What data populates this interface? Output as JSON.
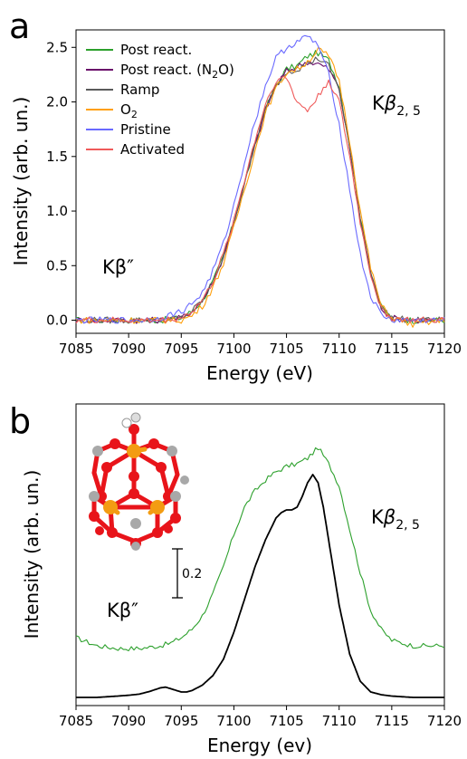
{
  "chart_data": [
    {
      "panel": "a",
      "type": "line",
      "xlabel": "Energy (eV)",
      "ylabel": "Intensity (arb. un.)",
      "xlim": [
        7085,
        7120
      ],
      "ylim": [
        -0.12,
        2.66
      ],
      "xticks": [
        7085,
        7090,
        7095,
        7100,
        7105,
        7110,
        7115,
        7120
      ],
      "xtick_labels": [
        "7085",
        "7090",
        "7095",
        "7100",
        "7105",
        "7110",
        "7115",
        "7120"
      ],
      "yticks": [
        0.0,
        0.5,
        1.0,
        1.5,
        2.0,
        2.5
      ],
      "ytick_labels": [
        "0.0",
        "0.5",
        "1.0",
        "1.5",
        "2.0",
        "2.5"
      ],
      "grid": false,
      "legend_position": "top-left",
      "annotations": [
        {
          "text": "Kβ″",
          "x": 7088.5,
          "y": 0.42
        },
        {
          "text": "Kβ2, 5",
          "x": 7113.5,
          "y": 2.0
        }
      ],
      "series": [
        {
          "name": "Post react.",
          "legend_sub": "",
          "legend_tail": "",
          "color": "#2ca02c",
          "x": [
            7085,
            7087,
            7089,
            7091,
            7093,
            7095,
            7096,
            7097,
            7098,
            7099,
            7100,
            7101,
            7102,
            7103,
            7104,
            7105,
            7106,
            7107,
            7108,
            7109,
            7110,
            7111,
            7112,
            7113,
            7114,
            7115,
            7117,
            7120
          ],
          "y": [
            0.0,
            0.0,
            0.0,
            0.0,
            0.0,
            0.02,
            0.08,
            0.18,
            0.35,
            0.58,
            0.9,
            1.25,
            1.6,
            1.93,
            2.15,
            2.3,
            2.33,
            2.42,
            2.45,
            2.38,
            2.15,
            1.6,
            0.95,
            0.45,
            0.12,
            0.02,
            0.0,
            0.0
          ]
        },
        {
          "name": "Post react. (N",
          "legend_sub": "2",
          "legend_tail": "O)",
          "color": "#6a0d6a",
          "x": [
            7085,
            7087,
            7089,
            7091,
            7093,
            7095,
            7096,
            7097,
            7098,
            7099,
            7100,
            7101,
            7102,
            7103,
            7104,
            7105,
            7106,
            7107,
            7108,
            7109,
            7110,
            7111,
            7112,
            7113,
            7114,
            7115,
            7117,
            7120
          ],
          "y": [
            0.0,
            0.0,
            0.0,
            0.0,
            0.0,
            0.02,
            0.08,
            0.18,
            0.35,
            0.58,
            0.9,
            1.25,
            1.6,
            1.92,
            2.15,
            2.28,
            2.32,
            2.37,
            2.35,
            2.3,
            2.12,
            1.58,
            0.93,
            0.44,
            0.12,
            0.02,
            0.0,
            0.0
          ]
        },
        {
          "name": "Ramp",
          "legend_sub": "",
          "legend_tail": "",
          "color": "#5a5a5a",
          "x": [
            7085,
            7087,
            7089,
            7091,
            7093,
            7095,
            7096,
            7097,
            7098,
            7099,
            7100,
            7101,
            7102,
            7103,
            7104,
            7105,
            7106,
            7107,
            7108,
            7109,
            7110,
            7111,
            7112,
            7113,
            7114,
            7115,
            7117,
            7120
          ],
          "y": [
            0.0,
            0.0,
            0.0,
            0.0,
            0.0,
            0.02,
            0.08,
            0.18,
            0.35,
            0.58,
            0.9,
            1.25,
            1.6,
            1.93,
            2.15,
            2.28,
            2.3,
            2.35,
            2.4,
            2.33,
            2.12,
            1.58,
            0.93,
            0.44,
            0.12,
            0.02,
            0.0,
            0.0
          ]
        },
        {
          "name": "O",
          "legend_sub": "2",
          "legend_tail": "",
          "color": "#ff9f0a",
          "x": [
            7085,
            7087,
            7089,
            7091,
            7093,
            7095,
            7096,
            7097,
            7098,
            7099,
            7100,
            7101,
            7102,
            7103,
            7104,
            7105,
            7106,
            7107,
            7108,
            7109,
            7110,
            7111,
            7112,
            7113,
            7114,
            7115,
            7117,
            7120
          ],
          "y": [
            0.0,
            0.0,
            0.0,
            0.0,
            0.0,
            0.0,
            0.04,
            0.13,
            0.3,
            0.52,
            0.85,
            1.2,
            1.55,
            1.9,
            2.12,
            2.27,
            2.3,
            2.37,
            2.48,
            2.42,
            2.2,
            1.65,
            1.0,
            0.48,
            0.13,
            0.02,
            -0.04,
            0.0
          ]
        },
        {
          "name": "Pristine",
          "legend_sub": "",
          "legend_tail": "",
          "color": "#6a6aff",
          "x": [
            7085,
            7087,
            7089,
            7091,
            7093,
            7095,
            7096,
            7097,
            7098,
            7099,
            7100,
            7101,
            7102,
            7103,
            7104,
            7105,
            7106,
            7107,
            7108,
            7109,
            7110,
            7111,
            7112,
            7113,
            7114,
            7115,
            7117,
            7120
          ],
          "y": [
            0.0,
            0.0,
            0.0,
            0.0,
            0.02,
            0.08,
            0.15,
            0.25,
            0.45,
            0.7,
            1.05,
            1.45,
            1.82,
            2.15,
            2.4,
            2.5,
            2.55,
            2.6,
            2.52,
            2.25,
            1.8,
            1.2,
            0.6,
            0.22,
            0.05,
            0.0,
            0.0,
            0.0
          ]
        },
        {
          "name": "Activated",
          "legend_sub": "",
          "legend_tail": "",
          "color": "#ef5a5a",
          "x": [
            7085,
            7087,
            7089,
            7091,
            7093,
            7095,
            7096,
            7097,
            7098,
            7099,
            7100,
            7101,
            7102,
            7103,
            7104,
            7105,
            7106,
            7107,
            7108,
            7109,
            7110,
            7111,
            7112,
            7113,
            7114,
            7115,
            7117,
            7120
          ],
          "y": [
            0.0,
            0.0,
            0.0,
            0.0,
            0.0,
            0.02,
            0.08,
            0.18,
            0.35,
            0.6,
            0.92,
            1.28,
            1.65,
            1.98,
            2.2,
            2.22,
            2.0,
            1.92,
            2.05,
            2.2,
            2.0,
            1.5,
            0.9,
            0.42,
            0.1,
            0.02,
            0.0,
            0.0
          ]
        }
      ]
    },
    {
      "panel": "b",
      "type": "line",
      "xlabel": "Energy (ev)",
      "ylabel": "Intensity (arb. un.)",
      "xlim": [
        7085,
        7120
      ],
      "ylim": [
        -0.03,
        1.08
      ],
      "xticks": [
        7085,
        7090,
        7095,
        7100,
        7105,
        7110,
        7115,
        7120
      ],
      "xtick_labels": [
        "7085",
        "7090",
        "7095",
        "7100",
        "7105",
        "7110",
        "7115",
        "7120"
      ],
      "yticks": [],
      "grid": false,
      "annotations": [
        {
          "text": "Kβ″",
          "x": 7087.5,
          "y": 0.27
        },
        {
          "text": "Kβ2, 5",
          "x": 7113,
          "y": 0.66
        }
      ],
      "scale_bar": {
        "label": "0.2",
        "x": 7094,
        "y_from": 0.335,
        "y_to": 0.535
      },
      "series": [
        {
          "name": "",
          "color": "#2ca02c",
          "x": [
            7085,
            7087,
            7089,
            7091,
            7093,
            7094,
            7095,
            7096,
            7097,
            7098,
            7099,
            7100,
            7101,
            7102,
            7103,
            7104,
            7105,
            7106,
            7107,
            7108,
            7109,
            7110,
            7111,
            7112,
            7113,
            7114,
            7115,
            7117,
            7120
          ],
          "y": [
            0.22,
            0.19,
            0.18,
            0.18,
            0.19,
            0.2,
            0.22,
            0.25,
            0.3,
            0.38,
            0.48,
            0.6,
            0.7,
            0.76,
            0.8,
            0.83,
            0.85,
            0.86,
            0.88,
            0.92,
            0.86,
            0.78,
            0.62,
            0.46,
            0.32,
            0.25,
            0.21,
            0.19,
            0.19
          ]
        },
        {
          "name": "",
          "color": "#000000",
          "x": [
            7085,
            7087,
            7089,
            7090,
            7091,
            7092,
            7093,
            7093.5,
            7094,
            7095,
            7095.5,
            7096,
            7097,
            7098,
            7099,
            7100,
            7101,
            7102,
            7103,
            7103.5,
            7104,
            7104.5,
            7105,
            7105.5,
            7106,
            7106.5,
            7107,
            7107.5,
            7108,
            7108.5,
            7109,
            7110,
            7111,
            7112,
            7113,
            7114,
            7115,
            7117,
            7120
          ],
          "y": [
            0.0,
            0.0,
            0.005,
            0.008,
            0.012,
            0.022,
            0.035,
            0.038,
            0.032,
            0.02,
            0.02,
            0.025,
            0.045,
            0.08,
            0.14,
            0.24,
            0.36,
            0.48,
            0.58,
            0.62,
            0.66,
            0.68,
            0.69,
            0.69,
            0.7,
            0.74,
            0.79,
            0.82,
            0.79,
            0.7,
            0.58,
            0.34,
            0.16,
            0.06,
            0.02,
            0.01,
            0.005,
            0.0,
            0.0
          ]
        }
      ]
    }
  ]
}
